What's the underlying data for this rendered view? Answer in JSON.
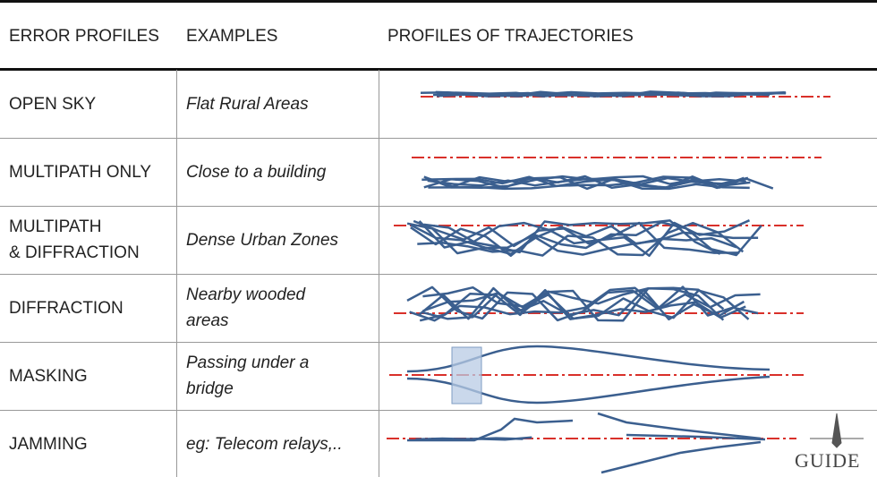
{
  "header": {
    "columns": [
      "ERROR PROFILES",
      "EXAMPLES",
      "PROFILES OF TRAJECTORIES"
    ]
  },
  "rows": [
    {
      "profile": [
        "OPEN SKY"
      ],
      "example": [
        "Flat Rural Areas"
      ]
    },
    {
      "profile": [
        "MULTIPATH ONLY"
      ],
      "example": [
        "Close to a building"
      ]
    },
    {
      "profile": [
        "MULTIPATH",
        "& DIFFRACTION"
      ],
      "example": [
        "Dense Urban Zones"
      ]
    },
    {
      "profile": [
        "DIFFRACTION"
      ],
      "example": [
        "Nearby wooded",
        "areas"
      ]
    },
    {
      "profile": [
        "MASKING"
      ],
      "example": [
        "Passing under a",
        "bridge"
      ]
    },
    {
      "profile": [
        "JAMMING"
      ],
      "example": [
        "eg: Telecom relays,.."
      ]
    }
  ],
  "logo": "GUIDE"
}
